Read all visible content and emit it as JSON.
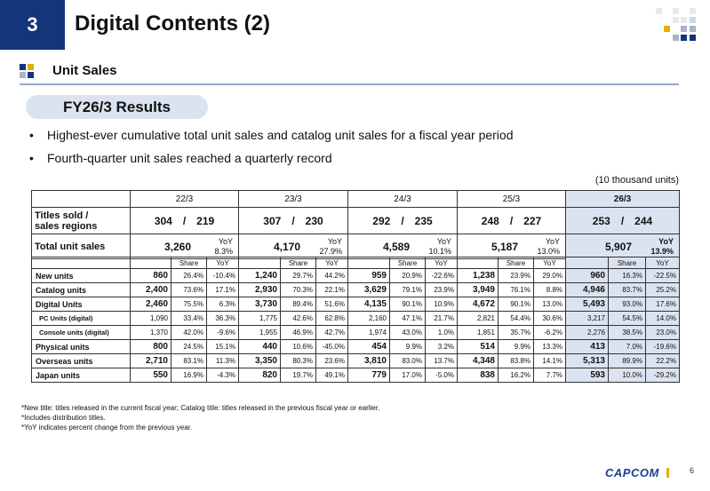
{
  "header": {
    "section_number": "3",
    "title": "Digital Contents (2)"
  },
  "subheader": {
    "title": "Unit Sales"
  },
  "banner": {
    "label": "FY26/3 Results"
  },
  "bullets": [
    "Highest-ever cumulative total unit sales and catalog unit sales for a fiscal year period",
    "Fourth-quarter unit sales reached a quarterly record"
  ],
  "unit_note": "(10 thousand units)",
  "years": [
    "22/3",
    "23/3",
    "24/3",
    "25/3",
    "26/3"
  ],
  "titles_row": {
    "label_line1": "Titles sold /",
    "label_line2": "sales regions",
    "values": [
      "304　/　219",
      "307　/　230",
      "292　/　235",
      "248　/　227",
      "253　/　244"
    ]
  },
  "total_row": {
    "label": "Total unit sales",
    "yoy_label": "YoY",
    "values": [
      "3,260",
      "4,170",
      "4,589",
      "5,187",
      "5,907"
    ],
    "yoy": [
      "8.3%",
      "27.9%",
      "10.1%",
      "13.0%",
      "13.9%"
    ]
  },
  "sub_headers": {
    "share": "Share",
    "yoy": "YoY"
  },
  "rows": [
    {
      "label": "New units",
      "sub": false,
      "cells": [
        [
          "860",
          "26.4%",
          "-10.4%"
        ],
        [
          "1,240",
          "29.7%",
          "44.2%"
        ],
        [
          "959",
          "20.9%",
          "-22.6%"
        ],
        [
          "1,238",
          "23.9%",
          "29.0%"
        ],
        [
          "960",
          "16.3%",
          "-22.5%"
        ]
      ]
    },
    {
      "label": "Catalog units",
      "sub": false,
      "cells": [
        [
          "2,400",
          "73.6%",
          "17.1%"
        ],
        [
          "2,930",
          "70.3%",
          "22.1%"
        ],
        [
          "3,629",
          "79.1%",
          "23.9%"
        ],
        [
          "3,949",
          "76.1%",
          "8.8%"
        ],
        [
          "4,946",
          "83.7%",
          "25.2%"
        ]
      ]
    },
    {
      "label": "Digital Units",
      "sub": false,
      "cells": [
        [
          "2,460",
          "75.5%",
          "6.3%"
        ],
        [
          "3,730",
          "89.4%",
          "51.6%"
        ],
        [
          "4,135",
          "90.1%",
          "10.9%"
        ],
        [
          "4,672",
          "90.1%",
          "13.0%"
        ],
        [
          "5,493",
          "93.0%",
          "17.6%"
        ]
      ]
    },
    {
      "label": "PC Units (digital)",
      "sub": true,
      "cells": [
        [
          "1,090",
          "33.4%",
          "36.3%"
        ],
        [
          "1,775",
          "42.6%",
          "62.8%"
        ],
        [
          "2,160",
          "47.1%",
          "21.7%"
        ],
        [
          "2,821",
          "54.4%",
          "30.6%"
        ],
        [
          "3,217",
          "54.5%",
          "14.0%"
        ]
      ]
    },
    {
      "label": "Console units (digital)",
      "sub": true,
      "cells": [
        [
          "1,370",
          "42.0%",
          "-9.6%"
        ],
        [
          "1,955",
          "46.9%",
          "42.7%"
        ],
        [
          "1,974",
          "43.0%",
          "1.0%"
        ],
        [
          "1,851",
          "35.7%",
          "-6.2%"
        ],
        [
          "2,276",
          "38.5%",
          "23.0%"
        ]
      ]
    },
    {
      "label": "Physical units",
      "sub": false,
      "cells": [
        [
          "800",
          "24.5%",
          "15.1%"
        ],
        [
          "440",
          "10.6%",
          "-45.0%"
        ],
        [
          "454",
          "9.9%",
          "3.2%"
        ],
        [
          "514",
          "9.9%",
          "13.3%"
        ],
        [
          "413",
          "7.0%",
          "-19.6%"
        ]
      ]
    },
    {
      "label": "Overseas units",
      "sub": false,
      "cells": [
        [
          "2,710",
          "83.1%",
          "11.3%"
        ],
        [
          "3,350",
          "80.3%",
          "23.6%"
        ],
        [
          "3,810",
          "83.0%",
          "13.7%"
        ],
        [
          "4,348",
          "83.8%",
          "14.1%"
        ],
        [
          "5,313",
          "89.9%",
          "22.2%"
        ]
      ]
    },
    {
      "label": "Japan units",
      "sub": false,
      "cells": [
        [
          "550",
          "16.9%",
          "-4.3%"
        ],
        [
          "820",
          "19.7%",
          "49.1%"
        ],
        [
          "779",
          "17.0%",
          "-5.0%"
        ],
        [
          "838",
          "16.2%",
          "7.7%"
        ],
        [
          "593",
          "10.0%",
          "-29.2%"
        ]
      ]
    }
  ],
  "notes": [
    "*New title: titles released in the current fiscal year; Catalog title: titles released in the previous fiscal year or earlier.",
    "*Includes distribution titles.",
    "*YoY indicates percent change from the previous year."
  ],
  "footer": {
    "logo": "CAPCOM",
    "page": "6"
  },
  "colors": {
    "brand_navy": "#13357a",
    "highlight": "#dbe3f1",
    "accent_yellow": "#e0b000",
    "accent_gray": "#a9b4c9"
  }
}
